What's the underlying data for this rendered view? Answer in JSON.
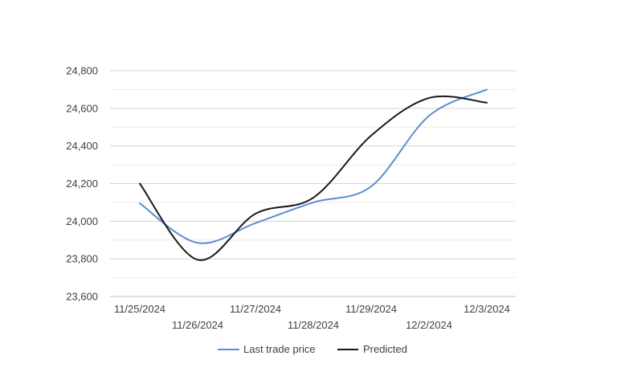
{
  "chart_data": {
    "type": "line",
    "title": "",
    "xlabel": "",
    "ylabel": "",
    "categories": [
      "11/25/2024",
      "11/26/2024",
      "11/27/2024",
      "11/28/2024",
      "11/29/2024",
      "12/2/2024",
      "12/3/2024"
    ],
    "ylim": [
      23600,
      24800
    ],
    "yticks": [
      "23,600",
      "23,800",
      "24,000",
      "24,200",
      "24,400",
      "24,600",
      "24,800"
    ],
    "ytick_values": [
      23600,
      23800,
      24000,
      24200,
      24400,
      24600,
      24800
    ],
    "grid": true,
    "minor_grid": true,
    "legend_position": "bottom",
    "smooth": true,
    "series": [
      {
        "name": "Last trade price",
        "color": "#5b8fcf",
        "values": [
          24095,
          23885,
          23990,
          24100,
          24185,
          24560,
          24700
        ]
      },
      {
        "name": "Predicted",
        "color": "#1a1a1a",
        "values": [
          24200,
          23795,
          24040,
          24125,
          24455,
          24655,
          24630
        ]
      }
    ]
  }
}
